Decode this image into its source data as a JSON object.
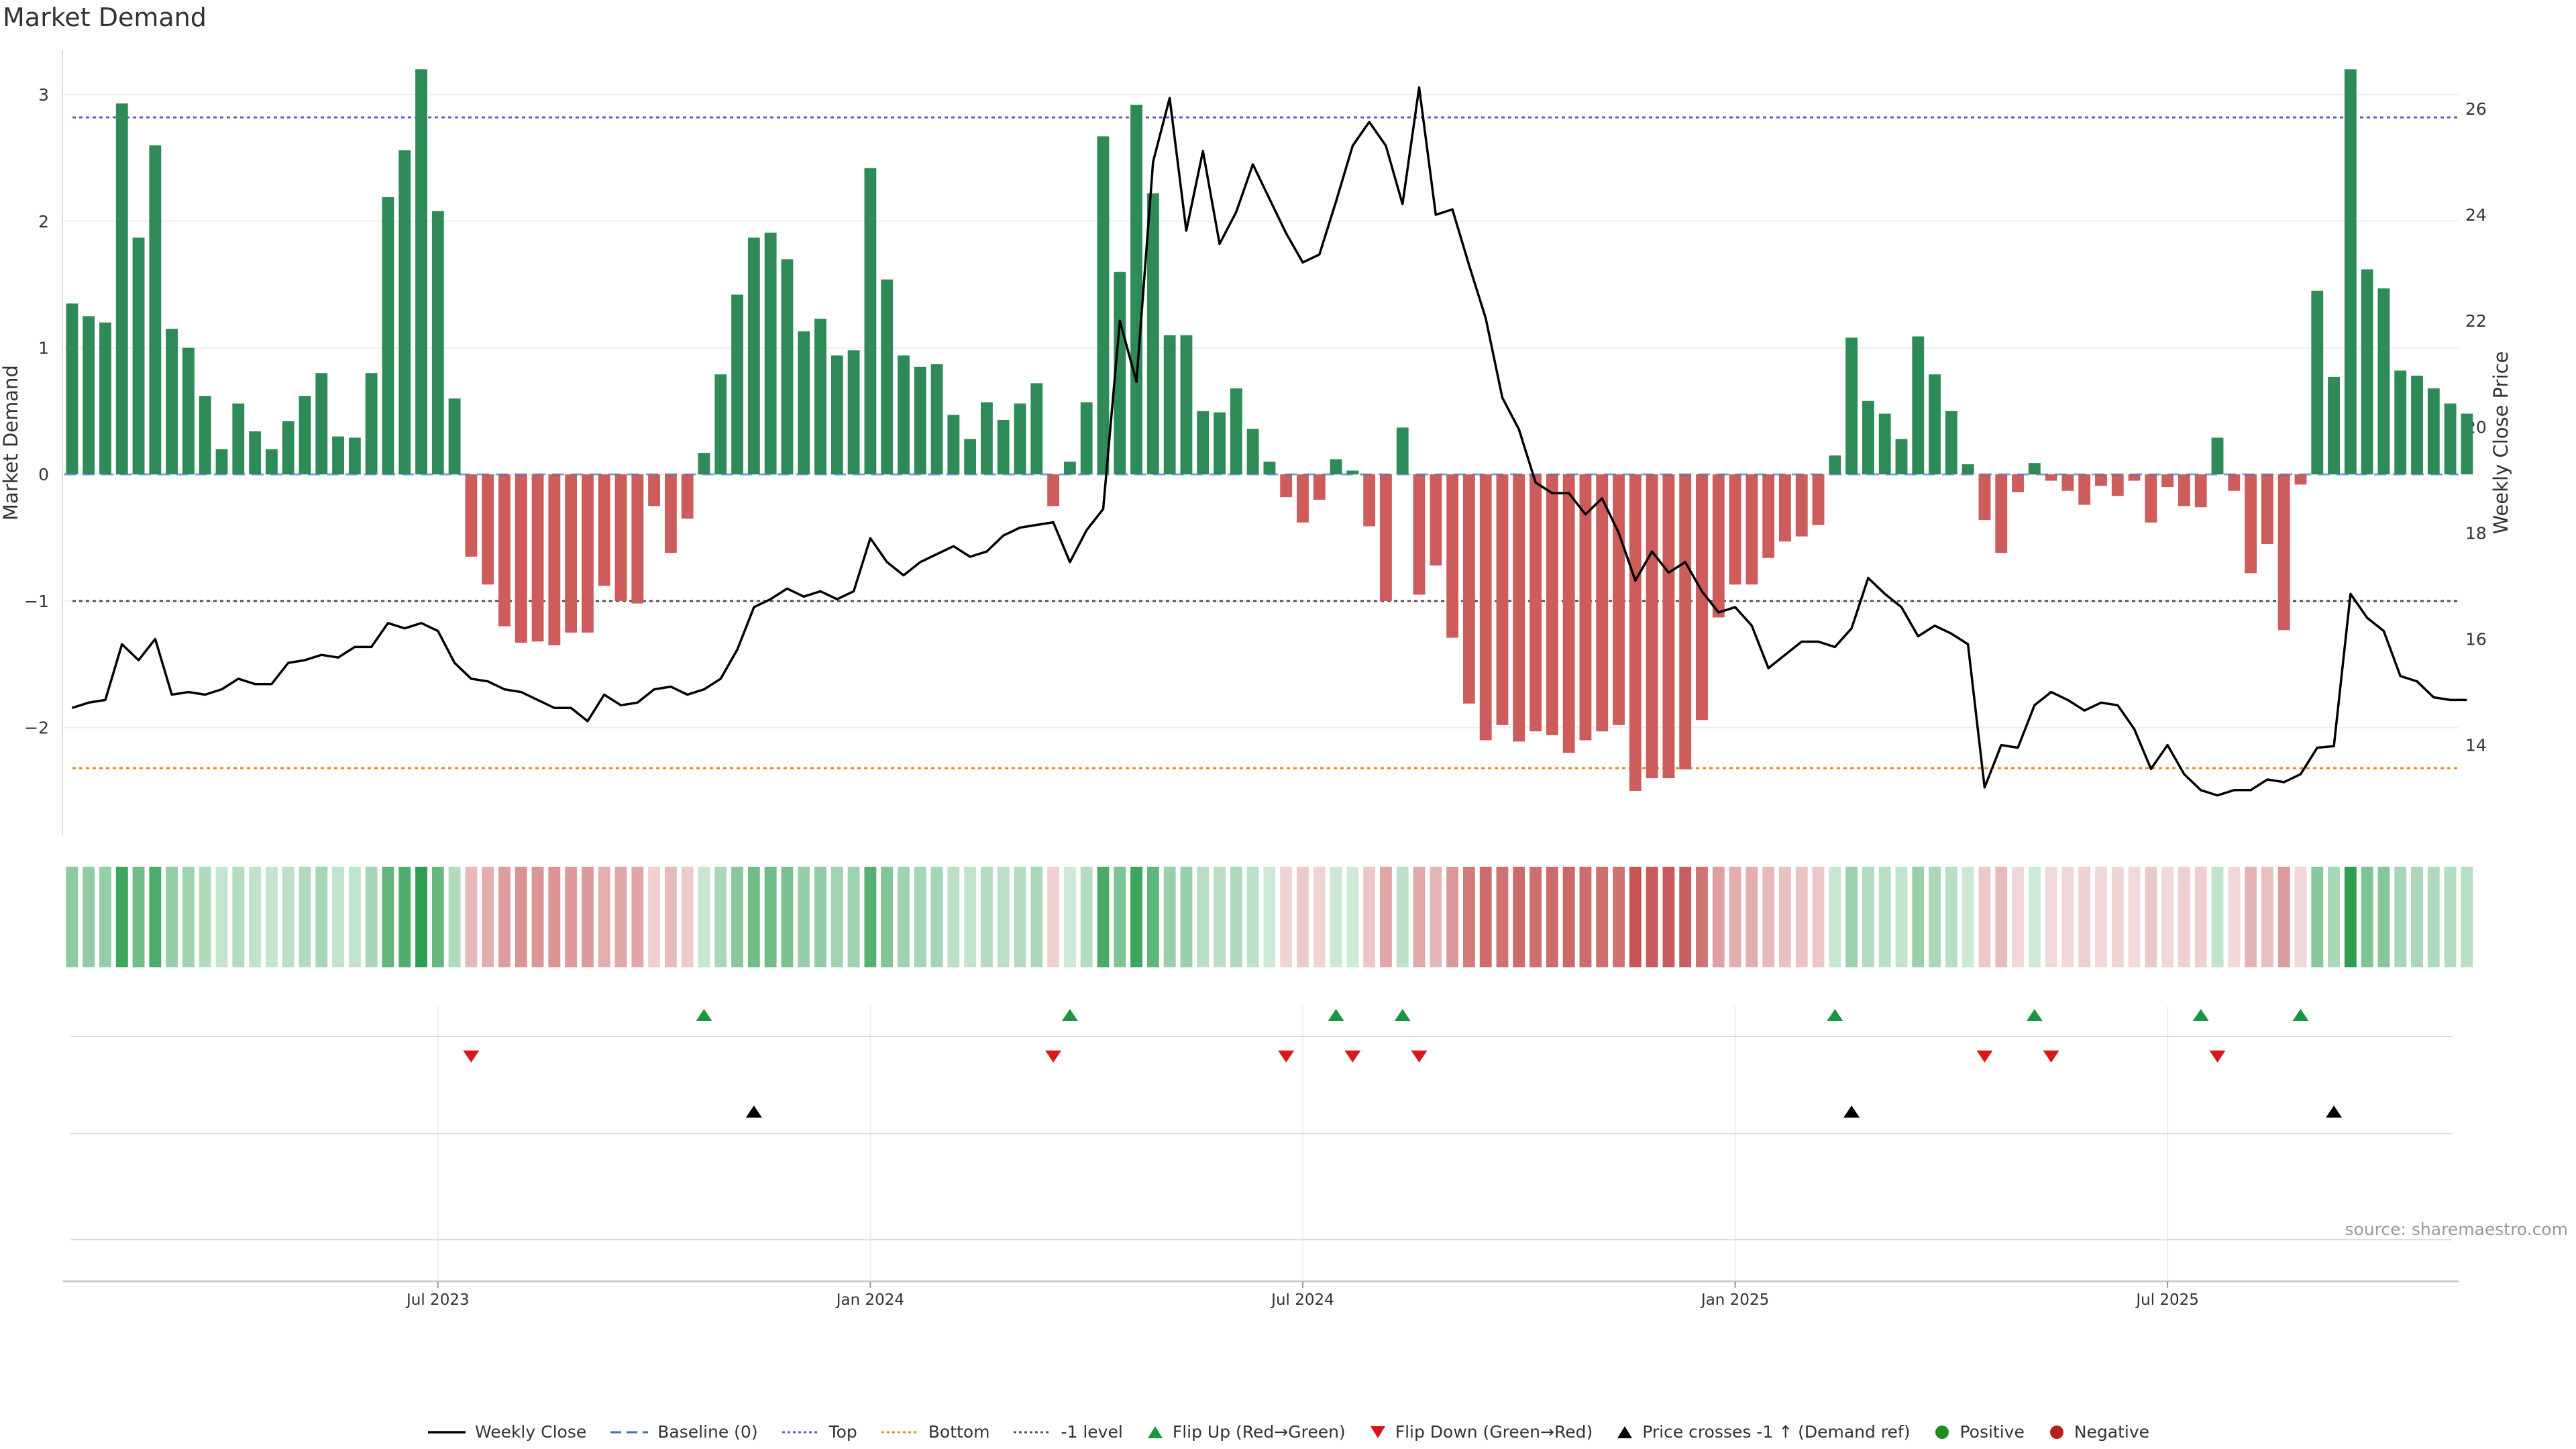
{
  "title": "Market Demand",
  "source_note": "source: sharemaestro.com",
  "colors": {
    "positive_bar": "#2e8b57",
    "negative_bar": "#cd5c5c",
    "price_line": "#000000",
    "top_line": "#5b5fc7",
    "bottom_line": "#e08a1e",
    "minus_one_line": "#555555",
    "flip_up": "#1a9641",
    "flip_down": "#d7191c",
    "cross_marker": "#000000",
    "positive_dot": "#228b22",
    "negative_dot": "#b22222"
  },
  "chart_data": {
    "type": "bar",
    "title": "Market Demand",
    "ylabel_left": "Market Demand",
    "ylabel_right": "Weekly Close Price",
    "ylim_left": [
      -2.85,
      3.35
    ],
    "ylim_right": [
      12.3,
      27.1
    ],
    "yticks_left": [
      3,
      2,
      1,
      0,
      -1,
      -2
    ],
    "ytick_labels_left": [
      "3",
      "2",
      "1",
      "0",
      "−1",
      "−2"
    ],
    "yticks_right": [
      26,
      24,
      22,
      20,
      18,
      16,
      14
    ],
    "xtick_labels": [
      "Jul 2023",
      "Jan 2024",
      "Jul 2024",
      "Jan 2025",
      "Jul 2025"
    ],
    "xtick_weeks": [
      22,
      48,
      74,
      100,
      126
    ],
    "reference_lines": {
      "top": 2.82,
      "bottom": -2.32,
      "minus_one": -1.0
    },
    "weeks": 144,
    "demand": [
      1.35,
      1.25,
      1.2,
      2.93,
      1.87,
      2.6,
      1.15,
      1.0,
      0.62,
      0.2,
      0.56,
      0.34,
      0.2,
      0.42,
      0.62,
      0.8,
      0.3,
      0.29,
      0.8,
      2.19,
      2.56,
      3.2,
      2.08,
      0.6,
      -0.65,
      -0.87,
      -1.2,
      -1.33,
      -1.32,
      -1.35,
      -1.25,
      -1.25,
      -0.88,
      -1.0,
      -1.02,
      -0.25,
      -0.62,
      -0.35,
      0.17,
      0.79,
      1.42,
      1.87,
      1.91,
      1.7,
      1.13,
      1.23,
      0.94,
      0.98,
      2.42,
      1.54,
      0.94,
      0.85,
      0.87,
      0.47,
      0.28,
      0.57,
      0.43,
      0.56,
      0.72,
      -0.25,
      0.1,
      0.57,
      2.67,
      1.6,
      2.92,
      2.22,
      1.1,
      1.1,
      0.5,
      0.49,
      0.68,
      0.36,
      0.1,
      -0.18,
      -0.38,
      -0.2,
      0.12,
      0.03,
      -0.41,
      -1.0,
      0.37,
      -0.95,
      -0.72,
      -1.29,
      -1.81,
      -2.1,
      -1.98,
      -2.11,
      -2.03,
      -2.06,
      -2.2,
      -2.1,
      -2.03,
      -1.98,
      -2.5,
      -2.4,
      -2.4,
      -2.33,
      -1.94,
      -1.13,
      -0.87,
      -0.87,
      -0.66,
      -0.53,
      -0.49,
      -0.4,
      0.15,
      1.08,
      0.58,
      0.48,
      0.28,
      1.09,
      0.79,
      0.5,
      0.08,
      -0.36,
      -0.62,
      -0.14,
      0.09,
      -0.05,
      -0.13,
      -0.24,
      -0.09,
      -0.17,
      -0.05,
      -0.38,
      -0.1,
      -0.25,
      -0.26,
      0.29,
      -0.13,
      -0.78,
      -0.55,
      -1.23,
      -0.08,
      1.45,
      0.77,
      3.2,
      1.62,
      1.47,
      0.82,
      0.78,
      0.68,
      0.56,
      0.48
    ],
    "price": [
      14.7,
      14.8,
      14.85,
      15.9,
      15.6,
      16.0,
      14.95,
      15.0,
      14.95,
      15.05,
      15.25,
      15.15,
      15.15,
      15.55,
      15.6,
      15.7,
      15.65,
      15.85,
      15.85,
      16.3,
      16.2,
      16.3,
      16.15,
      15.55,
      15.25,
      15.2,
      15.05,
      15.0,
      14.85,
      14.7,
      14.7,
      14.45,
      14.95,
      14.75,
      14.8,
      15.05,
      15.1,
      14.95,
      15.05,
      15.25,
      15.8,
      16.6,
      16.75,
      16.95,
      16.8,
      16.9,
      16.75,
      16.9,
      17.9,
      17.45,
      17.2,
      17.45,
      17.6,
      17.75,
      17.55,
      17.65,
      17.95,
      18.1,
      18.15,
      18.2,
      17.45,
      18.05,
      18.45,
      22.0,
      20.85,
      25.0,
      26.2,
      23.7,
      25.2,
      23.45,
      24.05,
      24.95,
      24.3,
      23.65,
      23.1,
      23.25,
      24.25,
      25.3,
      25.75,
      25.3,
      24.2,
      26.4,
      24.0,
      24.1,
      23.05,
      22.05,
      20.55,
      19.95,
      18.95,
      18.75,
      18.75,
      18.35,
      18.65,
      18.0,
      17.1,
      17.65,
      17.25,
      17.45,
      16.9,
      16.5,
      16.6,
      16.25,
      15.45,
      15.7,
      15.95,
      15.95,
      15.85,
      16.2,
      17.15,
      16.85,
      16.6,
      16.05,
      16.25,
      16.1,
      15.9,
      13.2,
      14.0,
      13.95,
      14.75,
      15.0,
      14.85,
      14.65,
      14.8,
      14.75,
      14.3,
      13.55,
      14.0,
      13.45,
      13.15,
      13.05,
      13.15,
      13.15,
      13.35,
      13.3,
      13.45,
      13.95,
      13.98,
      16.85,
      16.4,
      16.15,
      15.3,
      15.2,
      14.9,
      14.85,
      14.85
    ],
    "flip_up_weeks": [
      38,
      60,
      76,
      80,
      106,
      118,
      128,
      134
    ],
    "flip_down_weeks": [
      24,
      59,
      73,
      77,
      81,
      115,
      119,
      129
    ],
    "price_cross_weeks": [
      41,
      107,
      136
    ]
  },
  "legend": [
    {
      "label": "Weekly Close",
      "icon": "solid-line",
      "color": "#000000"
    },
    {
      "label": "Baseline (0)",
      "icon": "dashed-line",
      "color": "#3b6fb6"
    },
    {
      "label": "Top",
      "icon": "dotted-line",
      "color": "#5b5fc7"
    },
    {
      "label": "Bottom",
      "icon": "dotted-line",
      "color": "#e08a1e"
    },
    {
      "label": "-1 level",
      "icon": "dotted-line",
      "color": "#555555"
    },
    {
      "label": "Flip Up (Red→Green)",
      "icon": "triangle-up",
      "color": "#1a9641"
    },
    {
      "label": "Flip Down (Green→Red)",
      "icon": "triangle-down",
      "color": "#d7191c"
    },
    {
      "label": "Price crosses -1 ↑ (Demand ref)",
      "icon": "triangle-up",
      "color": "#000000"
    },
    {
      "label": "Positive",
      "icon": "dot",
      "color": "#228b22"
    },
    {
      "label": "Negative",
      "icon": "dot",
      "color": "#b22222"
    }
  ]
}
